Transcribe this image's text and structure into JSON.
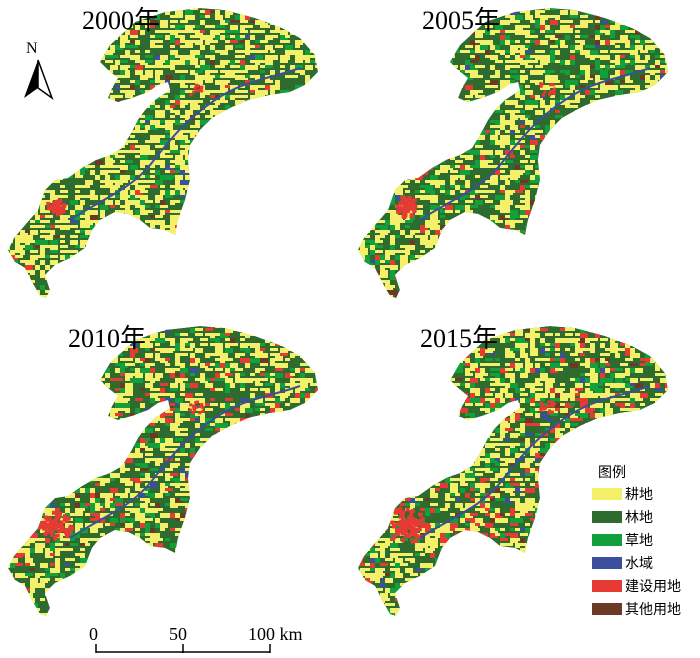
{
  "panels": [
    {
      "year": "2000年",
      "mix": "cultivated-dominant"
    },
    {
      "year": "2005年",
      "mix": "cultivated-forest"
    },
    {
      "year": "2010年",
      "mix": "forest-expanded-builtup"
    },
    {
      "year": "2015年",
      "mix": "builtup-expanded"
    }
  ],
  "north": {
    "label": "N"
  },
  "legend": {
    "title": "图例",
    "items": [
      {
        "label": "耕地",
        "color": "#f5f06a"
      },
      {
        "label": "林地",
        "color": "#2e6b2e"
      },
      {
        "label": "草地",
        "color": "#12a03c"
      },
      {
        "label": "水域",
        "color": "#3b4f9c"
      },
      {
        "label": "建设用地",
        "color": "#e63a35"
      },
      {
        "label": "其他用地",
        "color": "#6b3a24"
      }
    ]
  },
  "scale": {
    "ticks": [
      "0",
      "50",
      "100 km"
    ]
  }
}
